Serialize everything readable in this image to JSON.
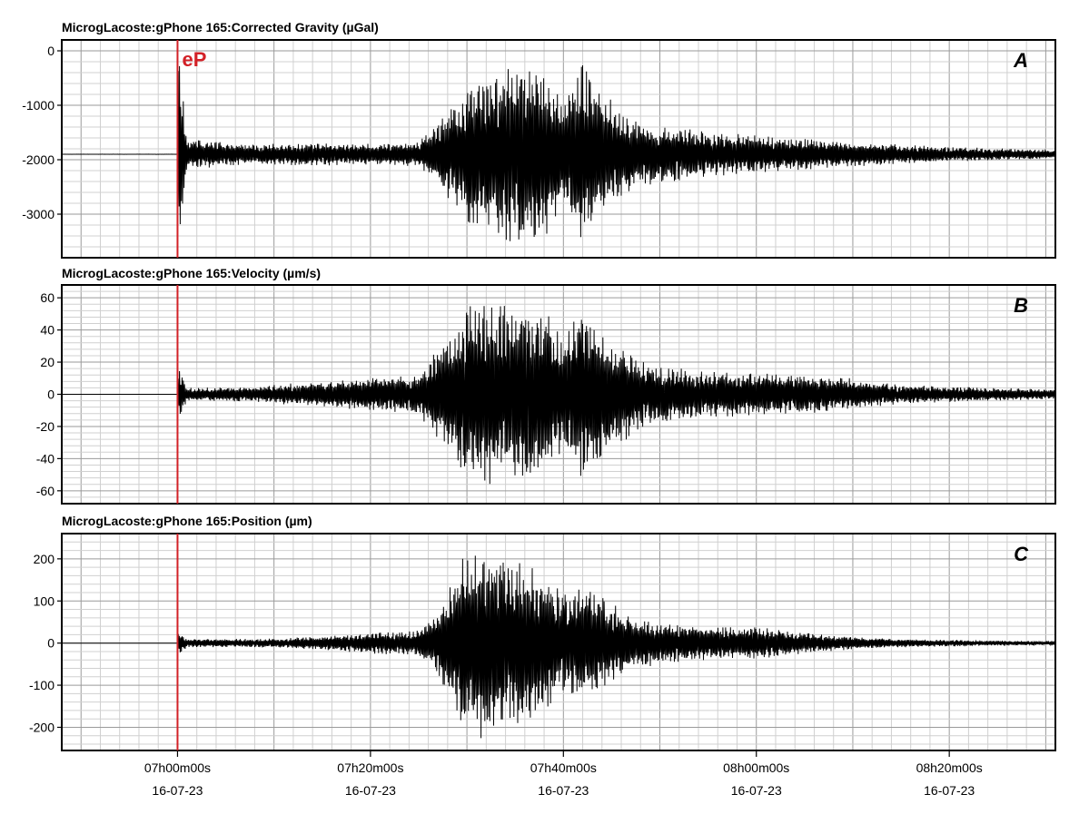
{
  "chart_data": [
    {
      "type": "line",
      "panel": "A",
      "title": "MicrogLacoste:gPhone 165:Corrected Gravity (µGal)",
      "ylim": [
        -3800,
        200
      ],
      "yticks": [
        0,
        -1000,
        -2000,
        -3000
      ],
      "ytick_labels": [
        "0",
        "-1000",
        "-2000",
        "-3000"
      ],
      "baseline": -1900,
      "grid": true,
      "x_minutes": [
        -12,
        0,
        0.1,
        1,
        8,
        14,
        20,
        25,
        27,
        30,
        32,
        35,
        38,
        40,
        42,
        45,
        48,
        50,
        55,
        60,
        65,
        70,
        75,
        80,
        85,
        91
      ],
      "envelope": [
        5,
        5,
        1900,
        280,
        180,
        220,
        200,
        230,
        600,
        1300,
        1400,
        1700,
        1600,
        1000,
        1700,
        1000,
        600,
        550,
        420,
        350,
        300,
        230,
        180,
        140,
        110,
        80
      ]
    },
    {
      "type": "line",
      "panel": "B",
      "title": "MicrogLacoste:gPhone 165:Velocity (µm/s)",
      "ylim": [
        -68,
        68
      ],
      "yticks": [
        60,
        40,
        20,
        0,
        -20,
        -40,
        -60
      ],
      "ytick_labels": [
        "60",
        "40",
        "20",
        "0",
        "-20",
        "-40",
        "-60"
      ],
      "baseline": 0,
      "grid": true,
      "x_minutes": [
        -12,
        0,
        0.1,
        1,
        8,
        14,
        20,
        25,
        27,
        30,
        32,
        35,
        38,
        40,
        42,
        45,
        48,
        50,
        55,
        60,
        65,
        70,
        75,
        80,
        85,
        91
      ],
      "envelope": [
        0,
        0,
        18,
        4,
        5,
        8,
        10,
        12,
        30,
        55,
        58,
        56,
        55,
        35,
        60,
        35,
        22,
        18,
        14,
        14,
        12,
        10,
        6,
        5,
        4,
        3
      ]
    },
    {
      "type": "line",
      "panel": "C",
      "title": "MicrogLacoste:gPhone 165:Position (µm)",
      "ylim": [
        -255,
        260
      ],
      "yticks": [
        200,
        100,
        0,
        -100,
        -200
      ],
      "ytick_labels": [
        "200",
        "100",
        "0",
        "-100",
        "-200"
      ],
      "baseline": 0,
      "grid": true,
      "x_minutes": [
        -12,
        0,
        0.1,
        1,
        8,
        14,
        20,
        25,
        27,
        30,
        32,
        35,
        38,
        40,
        42,
        45,
        48,
        50,
        55,
        60,
        65,
        70,
        75,
        80,
        85,
        91
      ],
      "envelope": [
        0,
        0,
        30,
        10,
        10,
        15,
        25,
        30,
        80,
        230,
        240,
        200,
        180,
        120,
        150,
        100,
        60,
        50,
        40,
        40,
        25,
        15,
        10,
        8,
        6,
        5
      ]
    }
  ],
  "panel_labels": [
    "A",
    "B",
    "C"
  ],
  "event": {
    "label": "eP",
    "x_minutes": 0,
    "color": "#d32127"
  },
  "x_axis": {
    "range_minutes": [
      -12,
      91
    ],
    "minor_step_minutes": 2,
    "major_step_minutes": 10,
    "ticks_minutes": [
      0,
      20,
      40,
      60,
      80
    ],
    "tick_labels": [
      "07h00m00s",
      "07h20m00s",
      "07h40m00s",
      "08h00m00s",
      "08h20m00s"
    ],
    "date_labels": [
      "16-07-23",
      "16-07-23",
      "16-07-23",
      "16-07-23",
      "16-07-23"
    ]
  },
  "colors": {
    "trace": "#000000",
    "grid": "#9a9a9a",
    "minor_grid": "#d0d0d0",
    "frame": "#000000"
  }
}
